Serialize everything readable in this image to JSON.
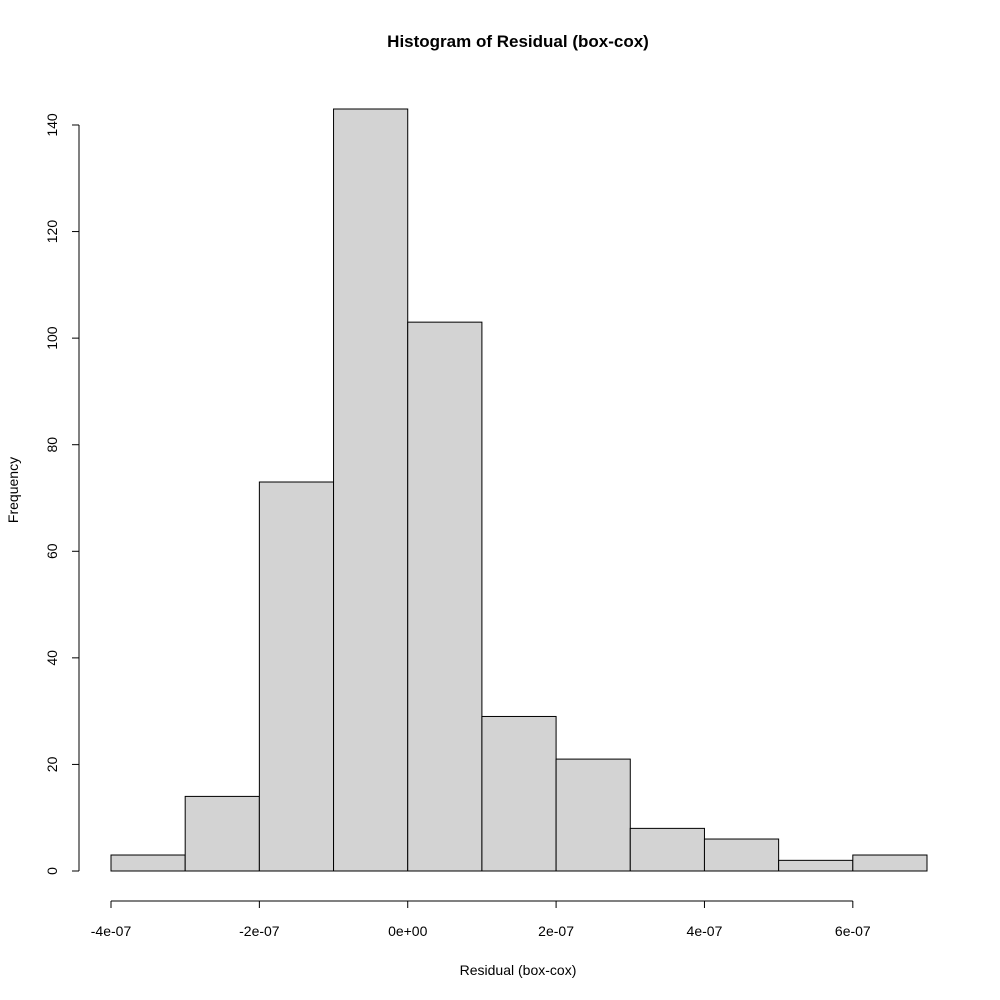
{
  "chart_data": {
    "type": "bar",
    "title": "Histogram of Residual (box-cox)",
    "xlabel": "Residual (box-cox)",
    "ylabel": "Frequency",
    "bin_edges": [
      -4e-07,
      -3e-07,
      -2e-07,
      -1e-07,
      0,
      1e-07,
      2e-07,
      3e-07,
      4e-07,
      5e-07,
      6e-07,
      7e-07
    ],
    "values": [
      3,
      14,
      73,
      143,
      103,
      29,
      21,
      8,
      6,
      2,
      3
    ],
    "xlim": [
      -4e-07,
      7e-07
    ],
    "ylim": [
      0,
      143
    ],
    "x_ticks": [
      {
        "value": -4e-07,
        "label": "-4e-07"
      },
      {
        "value": -2e-07,
        "label": "-2e-07"
      },
      {
        "value": 0,
        "label": "0e+00"
      },
      {
        "value": 2e-07,
        "label": "2e-07"
      },
      {
        "value": 4e-07,
        "label": "4e-07"
      },
      {
        "value": 6e-07,
        "label": "6e-07"
      }
    ],
    "y_ticks": [
      {
        "value": 0,
        "label": "0"
      },
      {
        "value": 20,
        "label": "20"
      },
      {
        "value": 40,
        "label": "40"
      },
      {
        "value": 60,
        "label": "60"
      },
      {
        "value": 80,
        "label": "80"
      },
      {
        "value": 100,
        "label": "100"
      },
      {
        "value": 120,
        "label": "120"
      },
      {
        "value": 140,
        "label": "140"
      }
    ],
    "grid": false,
    "colors": {
      "bar_fill": "#d3d3d3",
      "bar_stroke": "#000000"
    }
  }
}
